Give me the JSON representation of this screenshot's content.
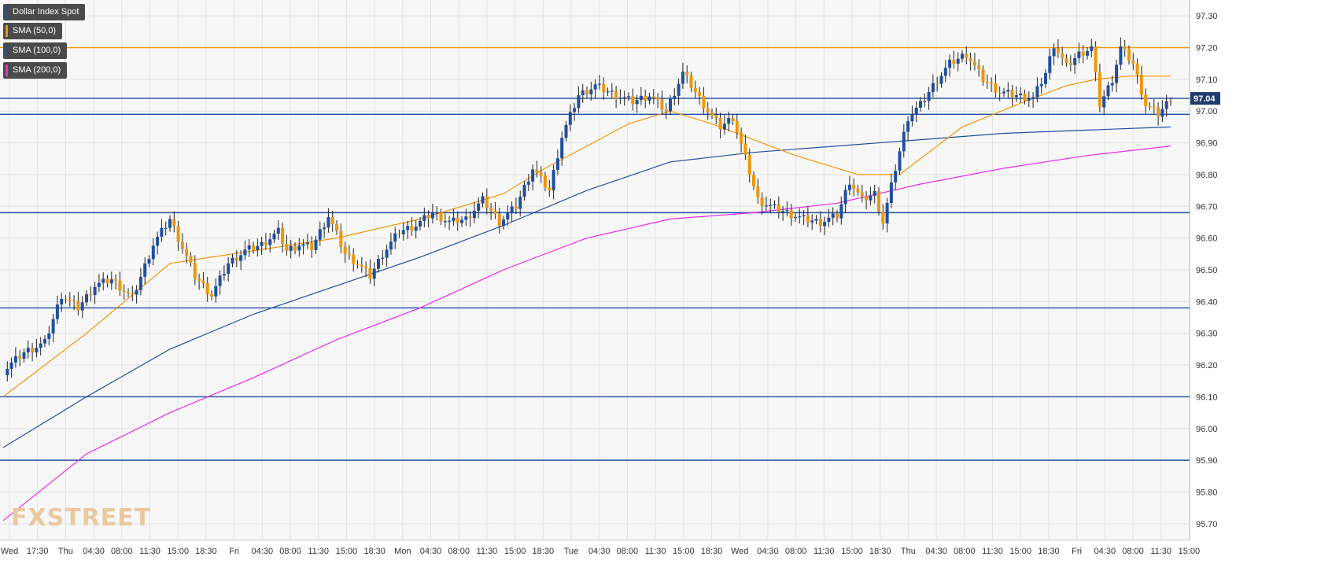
{
  "chart_data": {
    "type": "candlestick",
    "instrument": "Dollar Index Spot",
    "legend": [
      {
        "label": "Dollar Index Spot",
        "color": "#1f4fa0"
      },
      {
        "label": "SMA (50,0)",
        "color": "#f0960a"
      },
      {
        "label": "SMA (100,0)",
        "color": "#1f4fa0"
      },
      {
        "label": "SMA (200,0)",
        "color": "#e62ee6"
      }
    ],
    "ylim": [
      95.65,
      97.35
    ],
    "y_ticks": [
      "97.30",
      "97.20",
      "97.10",
      "97.00",
      "96.90",
      "96.80",
      "96.70",
      "96.60",
      "96.50",
      "96.40",
      "96.30",
      "96.20",
      "96.10",
      "96.00",
      "95.90",
      "95.80",
      "95.70"
    ],
    "x_ticks": [
      "Wed",
      "17:30",
      "Thu",
      "04:30",
      "08:00",
      "11:30",
      "15:00",
      "18:30",
      "Fri",
      "04:30",
      "08:00",
      "11:30",
      "15:00",
      "18:30",
      "Mon",
      "04:30",
      "08:00",
      "11:30",
      "15:00",
      "18:30",
      "Tue",
      "04:30",
      "08:00",
      "11:30",
      "15:00",
      "18:30",
      "Wed",
      "04:30",
      "08:00",
      "11:30",
      "15:00",
      "18:30",
      "Thu",
      "04:30",
      "08:00",
      "11:30",
      "15:00",
      "18:30",
      "Fri",
      "04:30",
      "08:00",
      "11:30",
      "15:00"
    ],
    "current_price": "97.04",
    "horizontal_levels": [
      {
        "value": 97.2,
        "color": "#f0960a"
      },
      {
        "value": 97.04,
        "color": "#1f4fa0"
      },
      {
        "value": 96.99,
        "color": "#1f4fa0"
      },
      {
        "value": 96.68,
        "color": "#1f4fa0"
      },
      {
        "value": 96.38,
        "color": "#1f4fa0"
      },
      {
        "value": 96.1,
        "color": "#1f4fa0"
      },
      {
        "value": 95.9,
        "color": "#1f4fa0"
      }
    ],
    "close_path": [
      [
        0,
        96.18
      ],
      [
        5,
        96.24
      ],
      [
        10,
        96.27
      ],
      [
        14,
        96.42
      ],
      [
        18,
        96.38
      ],
      [
        22,
        96.45
      ],
      [
        26,
        96.47
      ],
      [
        31,
        96.41
      ],
      [
        36,
        96.58
      ],
      [
        40,
        96.66
      ],
      [
        43,
        96.57
      ],
      [
        46,
        96.48
      ],
      [
        50,
        96.42
      ],
      [
        54,
        96.52
      ],
      [
        58,
        96.56
      ],
      [
        62,
        96.58
      ],
      [
        66,
        96.62
      ],
      [
        68,
        96.56
      ],
      [
        71,
        96.58
      ],
      [
        74,
        96.57
      ],
      [
        78,
        96.67
      ],
      [
        82,
        96.55
      ],
      [
        85,
        96.52
      ],
      [
        88,
        96.48
      ],
      [
        91,
        96.55
      ],
      [
        95,
        96.62
      ],
      [
        99,
        96.64
      ],
      [
        103,
        96.68
      ],
      [
        107,
        96.65
      ],
      [
        111,
        96.66
      ],
      [
        115,
        96.72
      ],
      [
        119,
        96.65
      ],
      [
        123,
        96.7
      ],
      [
        127,
        96.82
      ],
      [
        131,
        96.75
      ],
      [
        134,
        96.92
      ],
      [
        138,
        97.05
      ],
      [
        142,
        97.08
      ],
      [
        147,
        97.05
      ],
      [
        151,
        97.03
      ],
      [
        155,
        97.05
      ],
      [
        159,
        97.0
      ],
      [
        163,
        97.12
      ],
      [
        166,
        97.06
      ],
      [
        169,
        97.0
      ],
      [
        172,
        96.95
      ],
      [
        175,
        96.98
      ],
      [
        178,
        96.85
      ],
      [
        181,
        96.72
      ],
      [
        184,
        96.7
      ],
      [
        188,
        96.68
      ],
      [
        192,
        96.66
      ],
      [
        196,
        96.65
      ],
      [
        200,
        96.67
      ],
      [
        203,
        96.78
      ],
      [
        206,
        96.72
      ],
      [
        209,
        96.74
      ],
      [
        211,
        96.65
      ],
      [
        214,
        96.82
      ],
      [
        217,
        96.98
      ],
      [
        220,
        97.02
      ],
      [
        223,
        97.08
      ],
      [
        227,
        97.15
      ],
      [
        231,
        97.18
      ],
      [
        235,
        97.1
      ],
      [
        239,
        97.06
      ],
      [
        243,
        97.05
      ],
      [
        247,
        97.04
      ],
      [
        250,
        97.12
      ],
      [
        252,
        97.21
      ],
      [
        255,
        97.14
      ],
      [
        258,
        97.18
      ],
      [
        261,
        97.2
      ],
      [
        263,
        97.02
      ],
      [
        266,
        97.1
      ],
      [
        268,
        97.2
      ],
      [
        271,
        97.15
      ],
      [
        274,
        97.02
      ],
      [
        277,
        96.99
      ],
      [
        280,
        97.04
      ]
    ],
    "sma_50": [
      [
        0,
        96.1
      ],
      [
        20,
        96.3
      ],
      [
        40,
        96.52
      ],
      [
        60,
        96.56
      ],
      [
        80,
        96.6
      ],
      [
        100,
        96.66
      ],
      [
        120,
        96.74
      ],
      [
        130,
        96.82
      ],
      [
        150,
        96.96
      ],
      [
        160,
        97.0
      ],
      [
        170,
        96.96
      ],
      [
        190,
        96.86
      ],
      [
        205,
        96.8
      ],
      [
        215,
        96.8
      ],
      [
        230,
        96.95
      ],
      [
        245,
        97.03
      ],
      [
        255,
        97.08
      ],
      [
        262,
        97.1
      ],
      [
        270,
        97.11
      ],
      [
        280,
        97.11
      ]
    ],
    "sma_100": [
      [
        0,
        95.94
      ],
      [
        20,
        96.1
      ],
      [
        40,
        96.25
      ],
      [
        60,
        96.36
      ],
      [
        80,
        96.45
      ],
      [
        100,
        96.54
      ],
      [
        120,
        96.64
      ],
      [
        140,
        96.75
      ],
      [
        160,
        96.84
      ],
      [
        180,
        96.87
      ],
      [
        200,
        96.89
      ],
      [
        220,
        96.91
      ],
      [
        240,
        96.93
      ],
      [
        260,
        96.94
      ],
      [
        280,
        96.95
      ]
    ],
    "sma_200": [
      [
        0,
        95.71
      ],
      [
        20,
        95.92
      ],
      [
        40,
        96.05
      ],
      [
        60,
        96.16
      ],
      [
        80,
        96.28
      ],
      [
        100,
        96.38
      ],
      [
        120,
        96.5
      ],
      [
        140,
        96.6
      ],
      [
        160,
        96.66
      ],
      [
        180,
        96.68
      ],
      [
        200,
        96.71
      ],
      [
        220,
        96.77
      ],
      [
        240,
        96.82
      ],
      [
        260,
        96.86
      ],
      [
        280,
        96.89
      ]
    ]
  },
  "watermark": "FXSTREET"
}
